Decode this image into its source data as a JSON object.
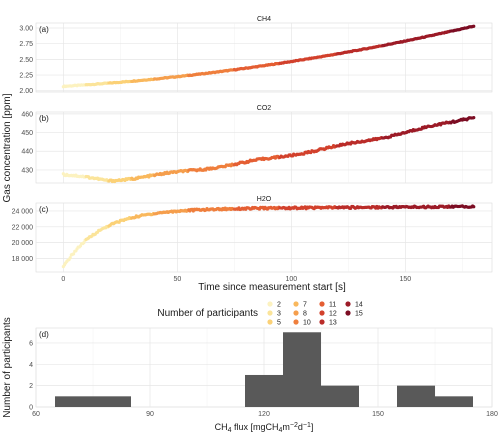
{
  "figure": {
    "y_axis_label": "Gas concentration [ppm]",
    "x_axis_label": "Time since measurement start [s]",
    "legend_title": "Number of participants",
    "legend_entries": [
      "2",
      "3",
      "5",
      "7",
      "8",
      "10",
      "11",
      "12",
      "13",
      "14",
      "15"
    ],
    "color_scale": [
      "#fcf2c0",
      "#fbe49a",
      "#fbd177",
      "#f9b85d",
      "#f59e4c",
      "#ef7f3d",
      "#e45e33",
      "#d2412c",
      "#ba2c29",
      "#9c1b27",
      "#7c0d23"
    ]
  },
  "chart_data": [
    {
      "type": "scatter",
      "panel_label": "(a)",
      "title": "CH4",
      "x_ticks": [
        0,
        50,
        100,
        150
      ],
      "y_ticks": [
        "2.00",
        "2.25",
        "2.50",
        "2.75",
        "3.00"
      ],
      "xlim": [
        -12,
        188
      ],
      "ylim": [
        1.98,
        3.08
      ],
      "series": [
        {
          "x_start": 0,
          "x_end": 180,
          "y_start": 2.07,
          "y_end": 3.03,
          "curve": "convex, accelerating increase"
        }
      ],
      "color_by_participants": {
        "time_ranges": [
          [
            0,
            10,
            "2"
          ],
          [
            10,
            20,
            "3"
          ],
          [
            20,
            30,
            "5"
          ],
          [
            30,
            40,
            "7"
          ],
          [
            40,
            55,
            "8"
          ],
          [
            55,
            75,
            "10"
          ],
          [
            75,
            95,
            "11"
          ],
          [
            95,
            120,
            "12"
          ],
          [
            120,
            140,
            "13"
          ],
          [
            140,
            170,
            "14"
          ],
          [
            170,
            180,
            "15"
          ]
        ]
      }
    },
    {
      "type": "scatter",
      "panel_label": "(b)",
      "title": "CO2",
      "x_ticks": [
        0,
        50,
        100,
        150
      ],
      "y_ticks": [
        "430",
        "440",
        "450",
        "460"
      ],
      "xlim": [
        -12,
        188
      ],
      "ylim": [
        423,
        461
      ],
      "series": [
        {
          "x_start": 0,
          "x_end": 180,
          "y_start": 427.5,
          "y_min": 424.2,
          "y_min_at_x": 20,
          "y_end": 458.5,
          "curve": "initial dip then near-linear rise with small steps"
        }
      ],
      "color_by_participants": {
        "time_ranges": [
          [
            0,
            10,
            "2"
          ],
          [
            10,
            20,
            "3"
          ],
          [
            20,
            30,
            "5"
          ],
          [
            30,
            40,
            "7"
          ],
          [
            40,
            55,
            "8"
          ],
          [
            55,
            75,
            "10"
          ],
          [
            75,
            95,
            "11"
          ],
          [
            95,
            120,
            "12"
          ],
          [
            120,
            140,
            "13"
          ],
          [
            140,
            170,
            "14"
          ],
          [
            170,
            180,
            "15"
          ]
        ]
      }
    },
    {
      "type": "scatter",
      "panel_label": "(c)",
      "title": "H2O",
      "x_ticks": [
        0,
        50,
        100,
        150
      ],
      "y_ticks": [
        "18 000",
        "20 000",
        "22 000",
        "24 000"
      ],
      "xlim": [
        -12,
        188
      ],
      "ylim": [
        16300,
        25000
      ],
      "series": [
        {
          "x_start": 0,
          "x_end": 180,
          "y_start": 16900,
          "y_at_x20": 20800,
          "y_at_x50": 23100,
          "y_end": 24500,
          "curve": "rapid rise then plateau"
        }
      ],
      "color_by_participants": {
        "time_ranges": [
          [
            0,
            10,
            "2"
          ],
          [
            10,
            20,
            "3"
          ],
          [
            20,
            30,
            "5"
          ],
          [
            30,
            40,
            "7"
          ],
          [
            40,
            55,
            "8"
          ],
          [
            55,
            75,
            "10"
          ],
          [
            75,
            95,
            "11"
          ],
          [
            95,
            120,
            "12"
          ],
          [
            120,
            140,
            "13"
          ],
          [
            140,
            170,
            "14"
          ],
          [
            170,
            180,
            "15"
          ]
        ]
      }
    },
    {
      "type": "bar",
      "panel_label": "(d)",
      "title": "",
      "xlabel_parts": {
        "prefix": "CH",
        "sub1": "4",
        "mid": " flux [mgCH",
        "sub2": "4",
        "mid2": "m",
        "sup1": "−2",
        "mid3": "d",
        "sup2": "−1",
        "suffix": "]"
      },
      "ylabel": "Number of participants",
      "x_ticks": [
        60,
        90,
        120,
        150,
        180
      ],
      "y_ticks": [
        0,
        2,
        4,
        6
      ],
      "xlim": [
        60,
        180
      ],
      "ylim": [
        0,
        7.4
      ],
      "bins": [
        {
          "x0": 65,
          "x1": 85,
          "count": 1
        },
        {
          "x0": 115,
          "x1": 125,
          "count": 3
        },
        {
          "x0": 125,
          "x1": 135,
          "count": 7
        },
        {
          "x0": 135,
          "x1": 145,
          "count": 2
        },
        {
          "x0": 155,
          "x1": 165,
          "count": 2
        },
        {
          "x0": 165,
          "x1": 175,
          "count": 1
        }
      ],
      "bar_color": "#595959"
    }
  ]
}
